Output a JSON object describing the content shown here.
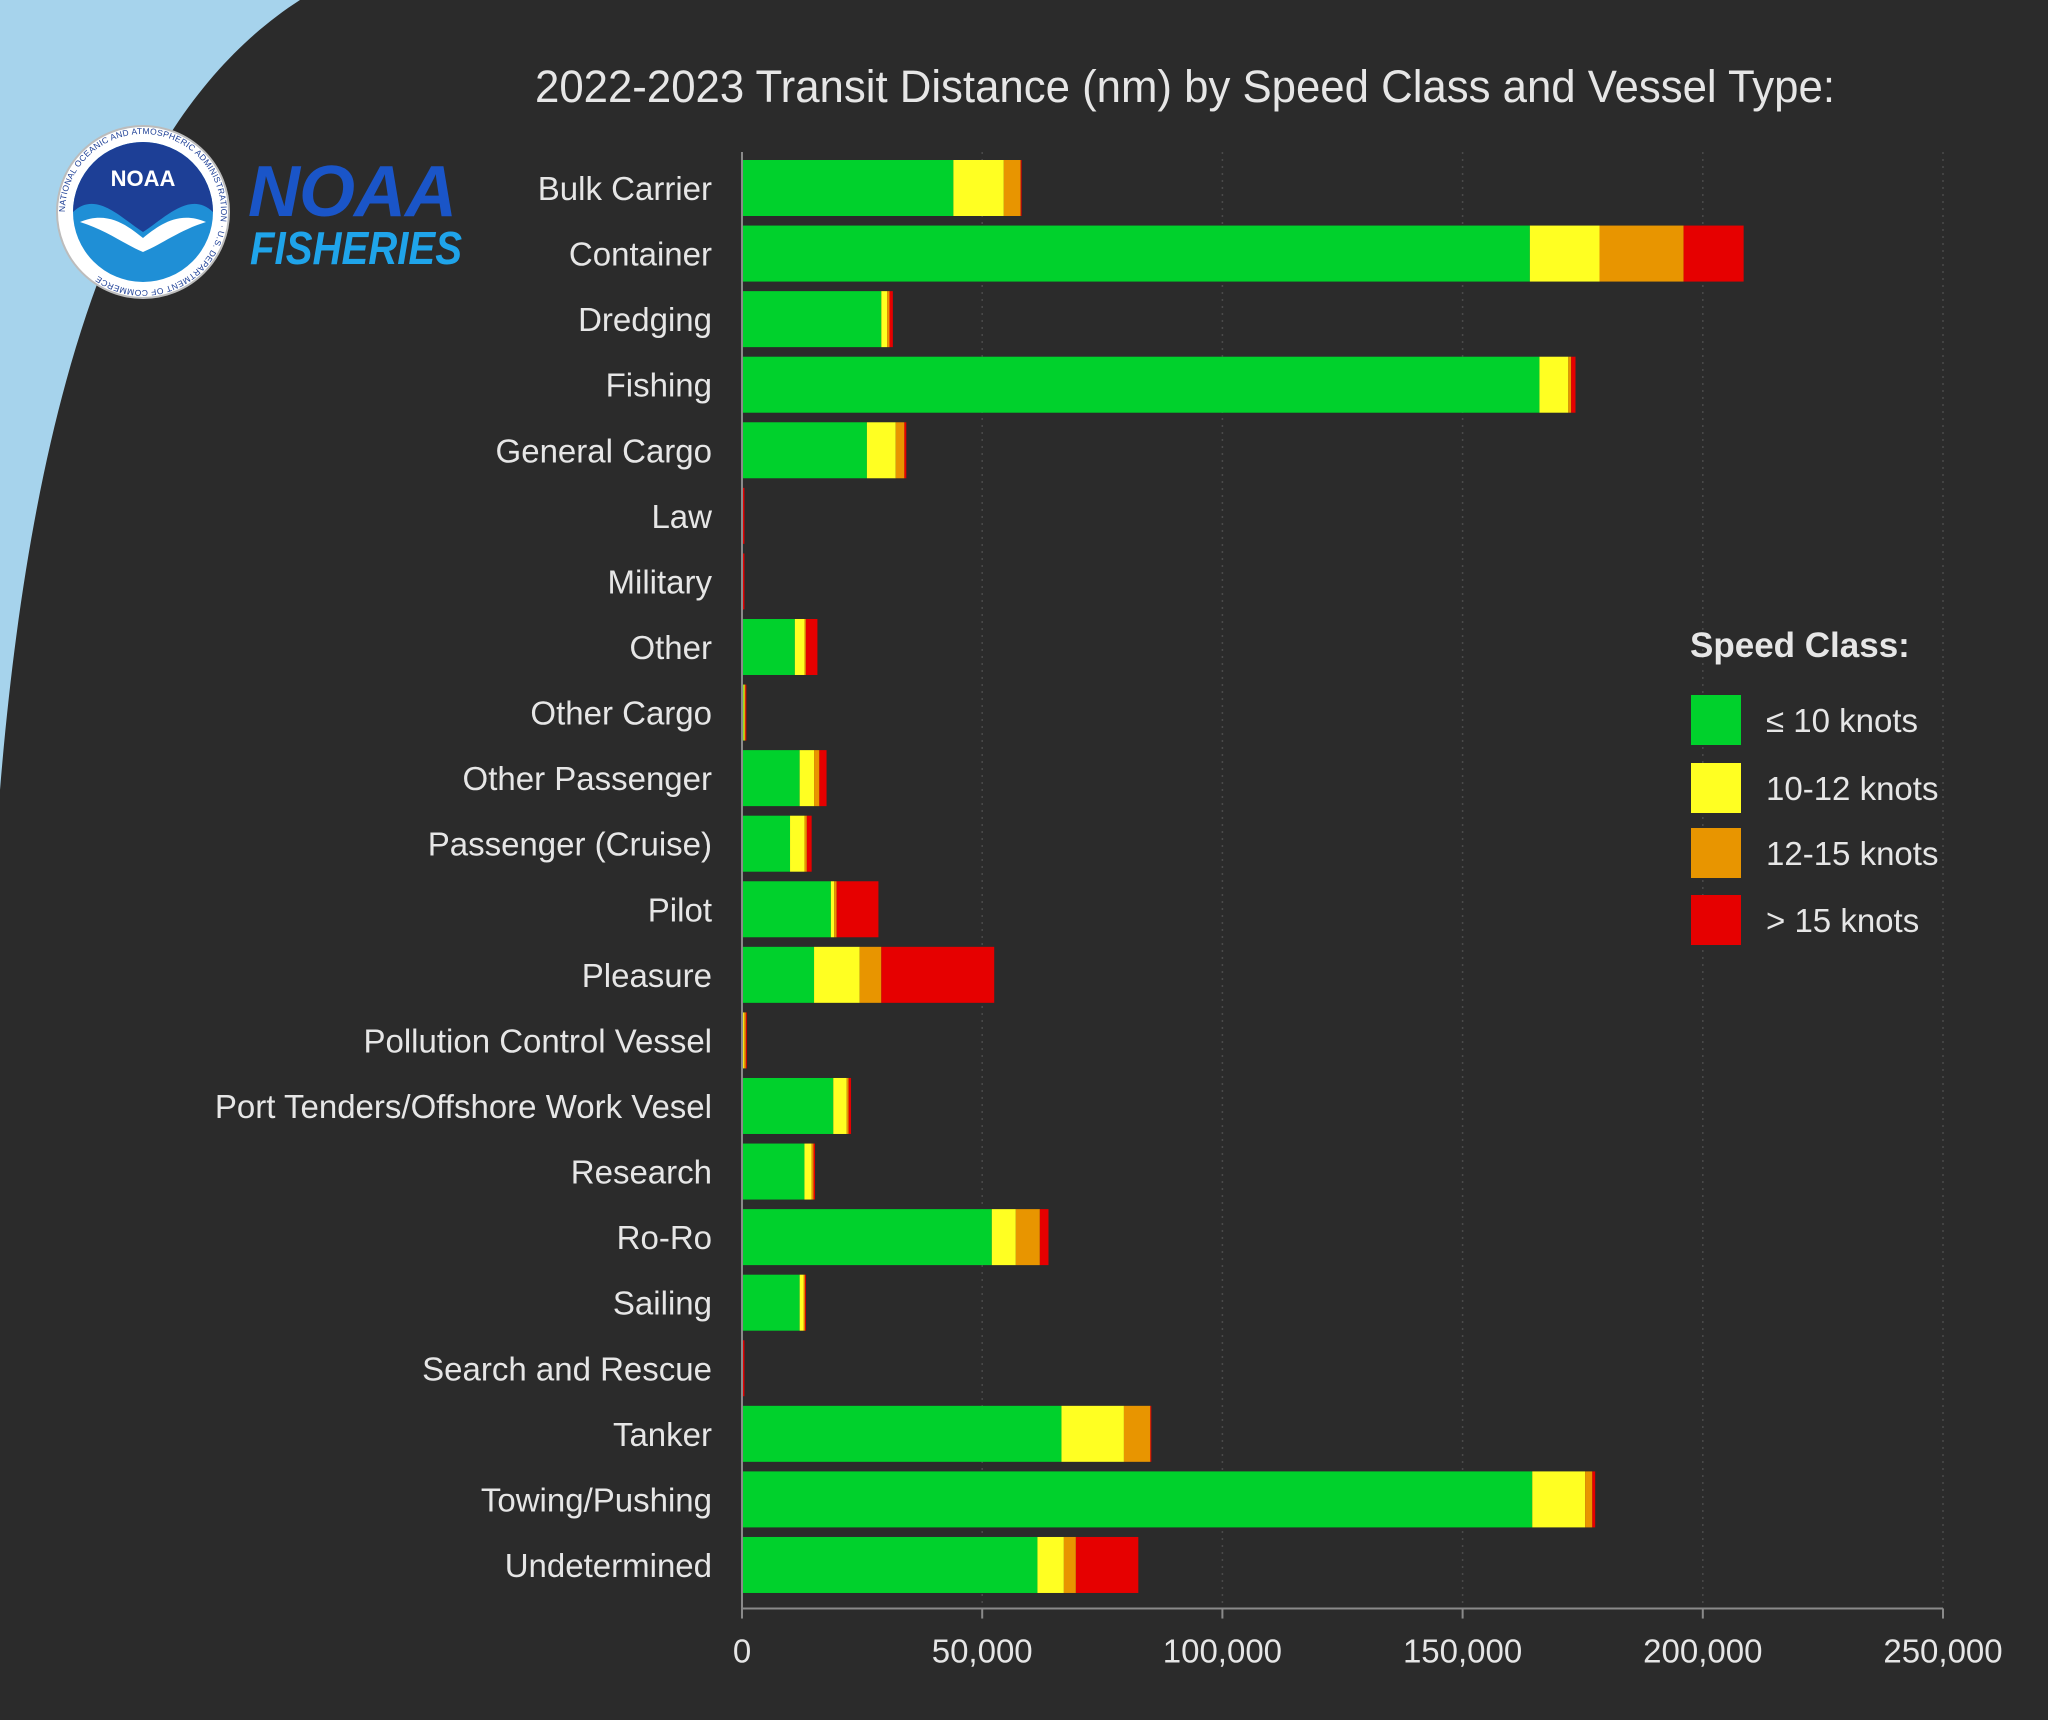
{
  "branding": {
    "seal_text": "NATIONAL OCEANIC AND ATMOSPHERIC ADMINISTRATION · U.S. DEPARTMENT OF COMMERCE",
    "seal_name": "NOAA",
    "logo_line1": "NOAA",
    "logo_line2": "FISHERIES"
  },
  "colors": {
    "background": "#2b2b2b",
    "sky": "#a6d3ec",
    "text": "#e6e6e6",
    "logo_dark_blue": "#1a55c8",
    "logo_light_blue": "#1fa4ea",
    "le10": "#00d12c",
    "k10_12": "#ffff22",
    "k12_15": "#e89500",
    "gt15": "#e60000"
  },
  "chart_data": {
    "type": "bar",
    "orientation": "horizontal",
    "stacked": true,
    "title": "2022-2023 Transit Distance (nm) by Speed Class and Vessel Type:",
    "xlabel": "",
    "ylabel": "",
    "xlim": [
      0,
      250000
    ],
    "xticks": [
      0,
      50000,
      100000,
      150000,
      200000,
      250000
    ],
    "xtick_labels": [
      "0",
      "50,000",
      "100,000",
      "150,000",
      "200,000",
      "250,000"
    ],
    "grid": "vertical dotted",
    "legend": {
      "title": "Speed Class:",
      "position": "right"
    },
    "categories": [
      "Bulk Carrier",
      "Container",
      "Dredging",
      "Fishing",
      "General Cargo",
      "Law",
      "Military",
      "Other",
      "Other Cargo",
      "Other Passenger",
      "Passenger (Cruise)",
      "Pilot",
      "Pleasure",
      "Pollution Control Vessel",
      "Port Tenders/Offshore Work Vesel",
      "Research",
      "Ro-Ro",
      "Sailing",
      "Search and Rescue",
      "Tanker",
      "Towing/Pushing",
      "Undetermined"
    ],
    "series": [
      {
        "name": "≤ 10 knots",
        "color": "#00d12c",
        "values": [
          44000,
          164000,
          29000,
          166000,
          26000,
          200,
          200,
          11000,
          300,
          12000,
          10000,
          18500,
          15000,
          200,
          19000,
          13000,
          52000,
          12000,
          200,
          66500,
          164500,
          61500
        ]
      },
      {
        "name": "10-12 knots",
        "color": "#ffff22",
        "values": [
          10500,
          14500,
          1200,
          6000,
          6000,
          0,
          0,
          2000,
          200,
          3000,
          3000,
          700,
          9500,
          200,
          2800,
          1500,
          5000,
          800,
          0,
          13000,
          11000,
          5500
        ]
      },
      {
        "name": "12-15 knots",
        "color": "#e89500",
        "values": [
          3500,
          17500,
          500,
          600,
          1800,
          0,
          0,
          300,
          200,
          1100,
          500,
          500,
          4500,
          400,
          400,
          400,
          5000,
          300,
          0,
          5500,
          1500,
          2500
        ]
      },
      {
        "name": "> 15 knots",
        "color": "#e60000",
        "values": [
          200,
          12500,
          700,
          900,
          400,
          300,
          300,
          2400,
          200,
          1500,
          1000,
          8700,
          23500,
          200,
          500,
          300,
          1800,
          200,
          300,
          200,
          600,
          13000
        ]
      }
    ]
  }
}
